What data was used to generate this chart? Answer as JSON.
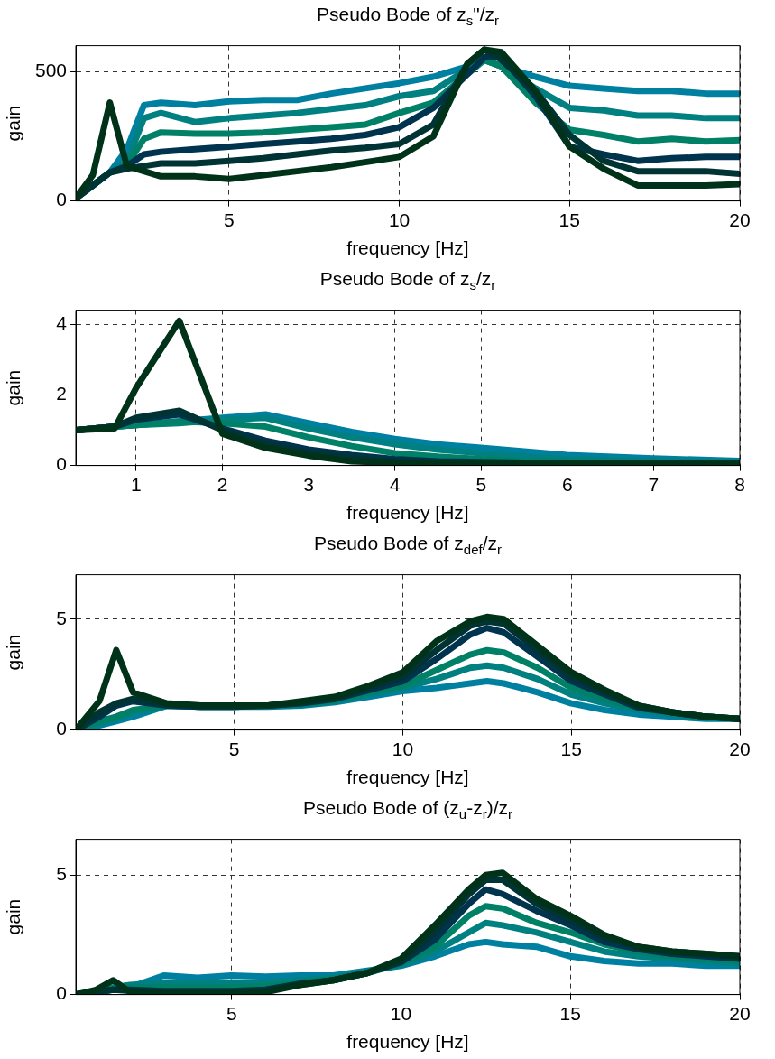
{
  "chart_data": [
    {
      "type": "line",
      "title": "Pseudo Bode of z$_{s}$\"/z$_{r}$",
      "xlabel": "frequency [Hz]",
      "ylabel": "gain",
      "x": [
        0.5,
        1,
        1.5,
        2,
        2.5,
        3,
        4,
        5,
        6,
        7,
        8,
        9,
        10,
        11,
        12,
        12.5,
        13,
        14,
        15,
        16,
        17,
        18,
        19,
        20
      ],
      "xlim": [
        0.5,
        20
      ],
      "xticks": [
        5,
        10,
        15,
        20
      ],
      "ylim": [
        0,
        600
      ],
      "yticks": [
        0,
        500
      ],
      "grid": true,
      "legend": false,
      "marker": "none",
      "line_style": "solid",
      "series": [
        {
          "color": "#00321a",
          "values": [
            10,
            100,
            380,
            135,
            115,
            95,
            95,
            85,
            100,
            115,
            130,
            150,
            170,
            250,
            530,
            585,
            575,
            425,
            210,
            125,
            60,
            60,
            60,
            65
          ]
        },
        {
          "color": "#003333",
          "values": [
            10,
            60,
            110,
            125,
            135,
            145,
            145,
            155,
            165,
            180,
            195,
            205,
            220,
            295,
            530,
            585,
            545,
            425,
            255,
            155,
            115,
            115,
            115,
            105
          ]
        },
        {
          "color": "#00334d",
          "values": [
            10,
            60,
            110,
            135,
            180,
            190,
            200,
            210,
            220,
            230,
            240,
            255,
            285,
            360,
            490,
            555,
            555,
            405,
            210,
            180,
            155,
            165,
            170,
            170
          ]
        },
        {
          "color": "#008066",
          "values": [
            10,
            60,
            110,
            140,
            240,
            265,
            260,
            260,
            265,
            275,
            285,
            295,
            340,
            380,
            490,
            545,
            520,
            380,
            275,
            255,
            230,
            240,
            230,
            235
          ]
        },
        {
          "color": "#008080",
          "values": [
            10,
            60,
            110,
            150,
            320,
            340,
            305,
            320,
            330,
            340,
            355,
            370,
            405,
            425,
            510,
            545,
            520,
            435,
            360,
            350,
            330,
            330,
            320,
            320
          ]
        },
        {
          "color": "#0080a0",
          "values": [
            10,
            60,
            110,
            200,
            370,
            380,
            370,
            385,
            390,
            390,
            415,
            435,
            455,
            480,
            520,
            545,
            520,
            480,
            445,
            435,
            425,
            425,
            415,
            415
          ]
        }
      ]
    },
    {
      "type": "line",
      "title": "Pseudo Bode of z$_{s}$/z$_{r}$",
      "xlabel": "frequency [Hz]",
      "ylabel": "gain",
      "x": [
        0.3,
        0.75,
        1,
        1.5,
        2,
        2.5,
        3,
        3.5,
        4,
        4.5,
        5,
        5.5,
        6,
        7,
        8
      ],
      "xlim": [
        0.3,
        8
      ],
      "xticks": [
        1,
        2,
        3,
        4,
        5,
        6,
        7,
        8
      ],
      "ylim": [
        0,
        4.4
      ],
      "yticks": [
        0,
        2,
        4
      ],
      "grid": true,
      "legend": false,
      "marker": "none",
      "line_style": "solid",
      "series": [
        {
          "color": "#00321a",
          "values": [
            1.0,
            1.05,
            2.2,
            4.1,
            0.9,
            0.5,
            0.28,
            0.12,
            0.08,
            0.06,
            0.05,
            0.05,
            0.05,
            0.05,
            0.05
          ]
        },
        {
          "color": "#003333",
          "values": [
            1.0,
            1.1,
            1.35,
            1.55,
            1.0,
            0.6,
            0.35,
            0.2,
            0.12,
            0.08,
            0.07,
            0.06,
            0.05,
            0.05,
            0.05
          ]
        },
        {
          "color": "#00334d",
          "values": [
            1.0,
            1.1,
            1.3,
            1.45,
            1.05,
            0.7,
            0.45,
            0.3,
            0.18,
            0.12,
            0.1,
            0.08,
            0.06,
            0.05,
            0.05
          ]
        },
        {
          "color": "#008066",
          "values": [
            1.0,
            1.1,
            1.15,
            1.25,
            1.2,
            1.1,
            0.8,
            0.55,
            0.35,
            0.25,
            0.18,
            0.12,
            0.1,
            0.07,
            0.06
          ]
        },
        {
          "color": "#008080",
          "values": [
            1.0,
            1.1,
            1.15,
            1.2,
            1.3,
            1.35,
            1.05,
            0.8,
            0.6,
            0.45,
            0.35,
            0.25,
            0.18,
            0.12,
            0.1
          ]
        },
        {
          "color": "#0080a0",
          "values": [
            1.0,
            1.1,
            1.15,
            1.25,
            1.35,
            1.45,
            1.2,
            0.95,
            0.75,
            0.6,
            0.5,
            0.4,
            0.3,
            0.2,
            0.13
          ]
        }
      ]
    },
    {
      "type": "line",
      "title": "Pseudo Bode of z$_{def}$/z$_{r}$",
      "xlabel": "frequency [Hz]",
      "ylabel": "gain",
      "x": [
        0.3,
        1,
        1.5,
        2,
        3,
        4,
        5,
        6,
        7,
        8,
        9,
        10,
        11,
        12,
        12.5,
        13,
        14,
        15,
        16,
        17,
        18,
        19,
        20
      ],
      "xlim": [
        0.3,
        20
      ],
      "xticks": [
        5,
        10,
        15,
        20
      ],
      "ylim": [
        0,
        7
      ],
      "yticks": [
        0,
        5
      ],
      "grid": true,
      "legend": false,
      "marker": "none",
      "line_style": "solid",
      "series": [
        {
          "color": "#00321a",
          "values": [
            0,
            1.3,
            3.6,
            1.7,
            1.2,
            1.1,
            1.1,
            1.1,
            1.3,
            1.5,
            2.0,
            2.6,
            4.0,
            4.9,
            5.1,
            5.0,
            3.8,
            2.6,
            1.8,
            1.1,
            0.8,
            0.6,
            0.5
          ]
        },
        {
          "color": "#003333",
          "values": [
            0,
            0.8,
            1.2,
            1.4,
            1.15,
            1.1,
            1.1,
            1.1,
            1.25,
            1.45,
            1.9,
            2.4,
            3.6,
            4.7,
            4.9,
            4.8,
            3.6,
            2.4,
            1.7,
            1.1,
            0.8,
            0.6,
            0.5
          ]
        },
        {
          "color": "#00334d",
          "values": [
            0,
            0.6,
            1.1,
            1.3,
            1.1,
            1.05,
            1.05,
            1.1,
            1.2,
            1.4,
            1.8,
            2.2,
            3.2,
            4.3,
            4.6,
            4.4,
            3.3,
            2.2,
            1.6,
            1.0,
            0.8,
            0.6,
            0.5
          ]
        },
        {
          "color": "#008066",
          "values": [
            0,
            0.4,
            0.6,
            0.9,
            1.1,
            1.05,
            1.05,
            1.1,
            1.15,
            1.35,
            1.7,
            2.0,
            2.7,
            3.4,
            3.6,
            3.5,
            2.8,
            1.9,
            1.4,
            1.0,
            0.8,
            0.6,
            0.5
          ]
        },
        {
          "color": "#008080",
          "values": [
            0,
            0.3,
            0.5,
            0.8,
            1.1,
            1.05,
            1.05,
            1.1,
            1.15,
            1.3,
            1.6,
            1.9,
            2.3,
            2.8,
            2.9,
            2.8,
            2.3,
            1.6,
            1.2,
            0.9,
            0.7,
            0.55,
            0.5
          ]
        },
        {
          "color": "#0080a0",
          "values": [
            0,
            0.2,
            0.4,
            0.6,
            1.1,
            1.05,
            1.05,
            1.05,
            1.1,
            1.25,
            1.5,
            1.75,
            1.9,
            2.1,
            2.2,
            2.1,
            1.7,
            1.2,
            0.9,
            0.7,
            0.6,
            0.5,
            0.5
          ]
        }
      ]
    },
    {
      "type": "line",
      "title": "Pseudo Bode of (z$_{u}$-z$_{r}$)/z$_{r}$",
      "xlabel": "frequency [Hz]",
      "ylabel": "gain",
      "x": [
        0.4,
        1,
        1.5,
        2,
        3,
        4,
        5,
        6,
        7,
        8,
        9,
        10,
        11,
        12,
        12.5,
        13,
        14,
        15,
        16,
        17,
        18,
        19,
        20
      ],
      "xlim": [
        0.4,
        20
      ],
      "xticks": [
        5,
        10,
        15,
        20
      ],
      "ylim": [
        0,
        6.5
      ],
      "yticks": [
        0,
        5
      ],
      "grid": true,
      "legend": false,
      "marker": "none",
      "line_style": "solid",
      "series": [
        {
          "color": "#00321a",
          "values": [
            0,
            0.2,
            0.6,
            0.1,
            0.05,
            0.05,
            0.05,
            0.1,
            0.4,
            0.6,
            0.9,
            1.5,
            2.9,
            4.4,
            5.0,
            5.1,
            4.0,
            3.3,
            2.5,
            2.0,
            1.8,
            1.7,
            1.6
          ]
        },
        {
          "color": "#003333",
          "values": [
            0,
            0.1,
            0.2,
            0.15,
            0.1,
            0.1,
            0.1,
            0.15,
            0.4,
            0.6,
            0.9,
            1.4,
            2.6,
            4.2,
            4.8,
            4.8,
            3.8,
            3.1,
            2.4,
            2.0,
            1.8,
            1.7,
            1.6
          ]
        },
        {
          "color": "#00334d",
          "values": [
            0,
            0.1,
            0.2,
            0.2,
            0.15,
            0.15,
            0.15,
            0.2,
            0.45,
            0.6,
            0.9,
            1.35,
            2.3,
            3.8,
            4.4,
            4.2,
            3.5,
            2.9,
            2.2,
            1.9,
            1.7,
            1.6,
            1.5
          ]
        },
        {
          "color": "#008066",
          "values": [
            0,
            0.1,
            0.25,
            0.3,
            0.3,
            0.3,
            0.3,
            0.35,
            0.5,
            0.65,
            0.9,
            1.3,
            2.0,
            3.3,
            3.7,
            3.6,
            3.0,
            2.6,
            2.1,
            1.8,
            1.6,
            1.5,
            1.4
          ]
        },
        {
          "color": "#008080",
          "values": [
            0,
            0.1,
            0.3,
            0.4,
            0.5,
            0.5,
            0.5,
            0.5,
            0.6,
            0.7,
            0.95,
            1.25,
            1.8,
            2.6,
            3.0,
            2.9,
            2.6,
            2.2,
            1.8,
            1.6,
            1.5,
            1.4,
            1.3
          ]
        },
        {
          "color": "#0080a0",
          "values": [
            0,
            0.1,
            0.2,
            0.3,
            0.8,
            0.7,
            0.8,
            0.75,
            0.8,
            0.8,
            1.0,
            1.2,
            1.6,
            2.1,
            2.2,
            2.1,
            2.0,
            1.6,
            1.4,
            1.3,
            1.3,
            1.2,
            1.2
          ]
        }
      ]
    }
  ]
}
